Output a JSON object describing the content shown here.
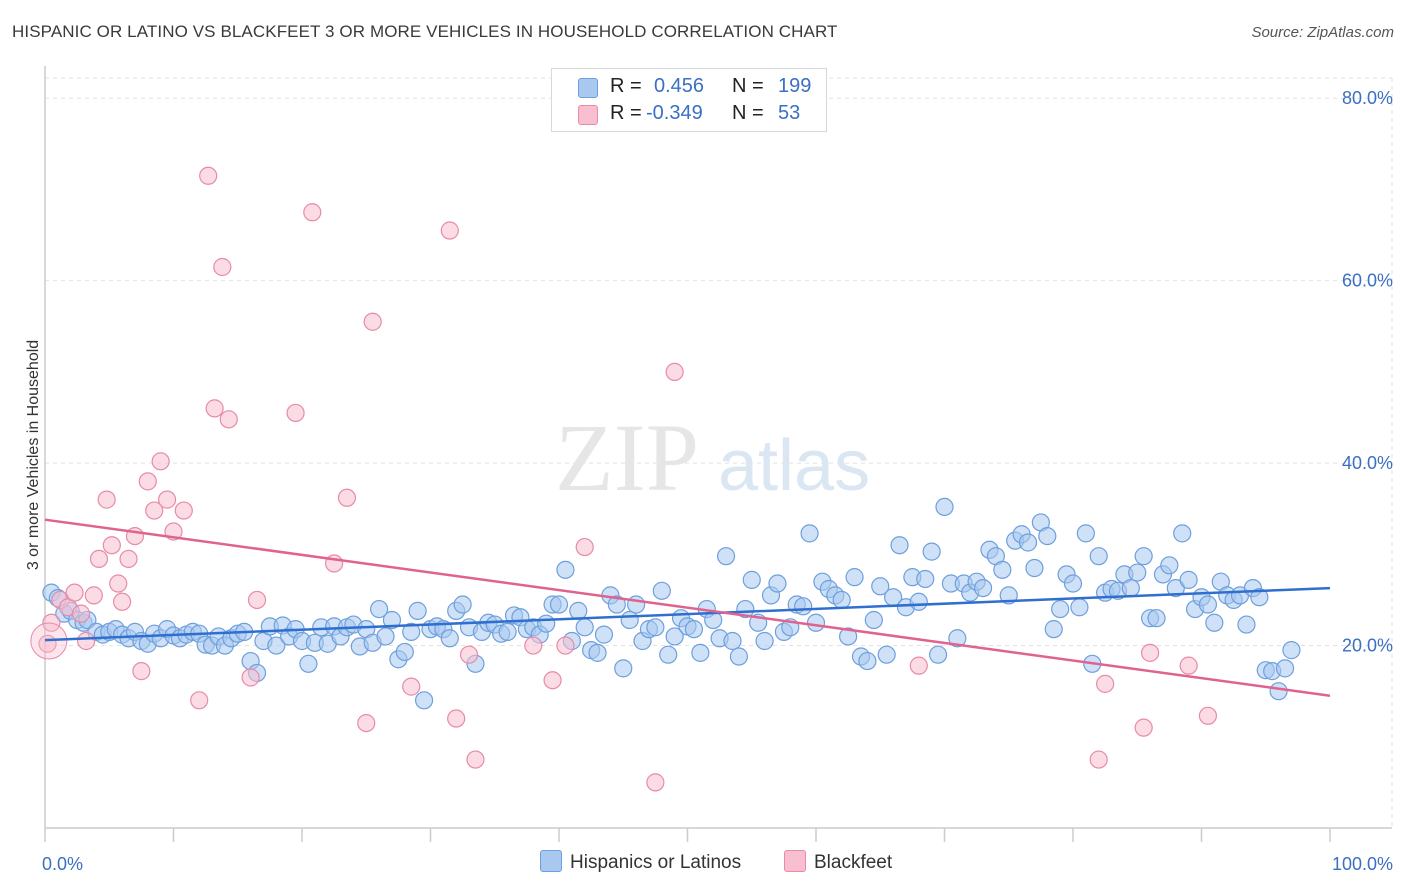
{
  "title": "HISPANIC OR LATINO VS BLACKFEET 3 OR MORE VEHICLES IN HOUSEHOLD CORRELATION CHART",
  "source": "Source: ZipAtlas.com",
  "watermark": {
    "zip": "ZIP",
    "atlas": "atlas"
  },
  "legend": {
    "rows": [
      {
        "r_label": "R =",
        "r_value": "0.456",
        "n_label": "N =",
        "n_value": "199",
        "color": "#a8c8f0",
        "border": "#6e9fdd"
      },
      {
        "r_label": "R =",
        "r_value": "-0.349",
        "n_label": "N =",
        "n_value": "53",
        "color": "#f7bfd0",
        "border": "#e88aa8"
      }
    ]
  },
  "bottom_legend": [
    {
      "label": "Hispanics or Latinos",
      "color": "#a8c8f0",
      "border": "#6e9fdd"
    },
    {
      "label": "Blackfeet",
      "color": "#f7bfd0",
      "border": "#e88aa8"
    }
  ],
  "chart_data": {
    "type": "scatter",
    "xlabel": "",
    "ylabel": "3 or more Vehicles in Household",
    "xlim": [
      0,
      100
    ],
    "ylim": [
      0,
      82
    ],
    "x_tick_labels": [
      "0.0%",
      "100.0%"
    ],
    "y_ticks": [
      20,
      40,
      60,
      80
    ],
    "y_tick_labels": [
      "20.0%",
      "40.0%",
      "60.0%",
      "80.0%"
    ],
    "grid": true,
    "series": [
      {
        "name": "Hispanics or Latinos",
        "color": "#6e9fdd",
        "fill": "#a8c8f0",
        "trend": {
          "x": [
            0,
            100
          ],
          "y": [
            20.6,
            26.3
          ]
        },
        "points": [
          [
            0.5,
            25.8
          ],
          [
            1,
            25.2
          ],
          [
            1.5,
            23.5
          ],
          [
            2,
            23.8
          ],
          [
            2.5,
            22.8
          ],
          [
            3,
            22.5
          ],
          [
            3.3,
            22.8
          ],
          [
            4,
            21.5
          ],
          [
            4.5,
            21.2
          ],
          [
            5,
            21.5
          ],
          [
            5.5,
            21.8
          ],
          [
            6,
            21.2
          ],
          [
            6.5,
            20.8
          ],
          [
            7,
            21.5
          ],
          [
            7.5,
            20.5
          ],
          [
            8,
            20.2
          ],
          [
            8.5,
            21.3
          ],
          [
            9,
            20.8
          ],
          [
            9.5,
            21.8
          ],
          [
            10,
            21.1
          ],
          [
            10.5,
            20.8
          ],
          [
            11,
            21.2
          ],
          [
            11.5,
            21.5
          ],
          [
            12,
            21.3
          ],
          [
            12.5,
            20.1
          ],
          [
            13,
            20.0
          ],
          [
            13.5,
            21.0
          ],
          [
            14,
            20.0
          ],
          [
            14.5,
            20.8
          ],
          [
            15,
            21.3
          ],
          [
            15.5,
            21.5
          ],
          [
            16,
            18.3
          ],
          [
            16.5,
            17.0
          ],
          [
            17,
            20.5
          ],
          [
            17.5,
            22.1
          ],
          [
            18,
            20.0
          ],
          [
            18.5,
            22.2
          ],
          [
            19,
            21.0
          ],
          [
            19.5,
            21.8
          ],
          [
            20,
            20.5
          ],
          [
            20.5,
            18.0
          ],
          [
            21,
            20.3
          ],
          [
            21.5,
            22.0
          ],
          [
            22,
            20.2
          ],
          [
            22.5,
            22.1
          ],
          [
            23,
            21.0
          ],
          [
            23.5,
            22.0
          ],
          [
            24,
            22.3
          ],
          [
            24.5,
            19.9
          ],
          [
            25,
            21.8
          ],
          [
            25.5,
            20.3
          ],
          [
            26,
            24.0
          ],
          [
            26.5,
            21.0
          ],
          [
            27,
            22.8
          ],
          [
            27.5,
            18.5
          ],
          [
            28,
            19.3
          ],
          [
            28.5,
            21.5
          ],
          [
            29,
            23.8
          ],
          [
            29.5,
            14.0
          ],
          [
            30,
            21.8
          ],
          [
            30.5,
            22.1
          ],
          [
            31,
            21.8
          ],
          [
            31.5,
            20.8
          ],
          [
            32,
            23.8
          ],
          [
            32.5,
            24.5
          ],
          [
            33,
            22.0
          ],
          [
            33.5,
            18.0
          ],
          [
            34,
            21.5
          ],
          [
            34.5,
            22.5
          ],
          [
            35,
            22.3
          ],
          [
            35.5,
            21.3
          ],
          [
            36,
            21.5
          ],
          [
            36.5,
            23.3
          ],
          [
            37,
            23.1
          ],
          [
            37.5,
            21.8
          ],
          [
            38,
            22.0
          ],
          [
            38.5,
            21.2
          ],
          [
            39,
            22.4
          ],
          [
            39.5,
            24.5
          ],
          [
            40,
            24.5
          ],
          [
            40.5,
            28.3
          ],
          [
            41,
            20.5
          ],
          [
            41.5,
            23.8
          ],
          [
            42,
            22.0
          ],
          [
            42.5,
            19.5
          ],
          [
            43,
            19.2
          ],
          [
            43.5,
            21.2
          ],
          [
            44,
            25.5
          ],
          [
            44.5,
            24.5
          ],
          [
            45,
            17.5
          ],
          [
            45.5,
            22.8
          ],
          [
            46,
            24.5
          ],
          [
            46.5,
            20.5
          ],
          [
            47,
            21.8
          ],
          [
            47.5,
            22.0
          ],
          [
            48,
            26.0
          ],
          [
            48.5,
            19.0
          ],
          [
            49,
            21.0
          ],
          [
            49.5,
            23.0
          ],
          [
            50,
            22.1
          ],
          [
            50.5,
            21.8
          ],
          [
            51,
            19.2
          ],
          [
            51.5,
            24.0
          ],
          [
            52,
            22.8
          ],
          [
            52.5,
            20.8
          ],
          [
            53,
            29.8
          ],
          [
            53.5,
            20.5
          ],
          [
            54,
            18.8
          ],
          [
            54.5,
            24.0
          ],
          [
            55,
            27.2
          ],
          [
            55.5,
            22.5
          ],
          [
            56,
            20.5
          ],
          [
            56.5,
            25.5
          ],
          [
            57,
            26.8
          ],
          [
            57.5,
            21.5
          ],
          [
            58,
            22.0
          ],
          [
            58.5,
            24.5
          ],
          [
            59,
            24.3
          ],
          [
            59.5,
            32.3
          ],
          [
            60,
            22.5
          ],
          [
            60.5,
            27.0
          ],
          [
            61,
            26.2
          ],
          [
            61.5,
            25.5
          ],
          [
            62,
            25.0
          ],
          [
            62.5,
            21.0
          ],
          [
            63,
            27.5
          ],
          [
            63.5,
            18.8
          ],
          [
            64,
            18.3
          ],
          [
            64.5,
            22.8
          ],
          [
            65,
            26.5
          ],
          [
            65.5,
            19.0
          ],
          [
            66,
            25.3
          ],
          [
            66.5,
            31.0
          ],
          [
            67,
            24.2
          ],
          [
            67.5,
            27.5
          ],
          [
            68,
            24.8
          ],
          [
            68.5,
            27.3
          ],
          [
            69,
            30.3
          ],
          [
            69.5,
            19.0
          ],
          [
            70,
            35.2
          ],
          [
            70.5,
            26.8
          ],
          [
            71,
            20.8
          ],
          [
            71.5,
            26.8
          ],
          [
            72,
            25.8
          ],
          [
            72.5,
            27.0
          ],
          [
            73,
            26.3
          ],
          [
            73.5,
            30.5
          ],
          [
            74,
            29.8
          ],
          [
            74.5,
            28.3
          ],
          [
            75,
            25.5
          ],
          [
            75.5,
            31.5
          ],
          [
            76,
            32.2
          ],
          [
            76.5,
            31.3
          ],
          [
            77,
            28.5
          ],
          [
            77.5,
            33.5
          ],
          [
            78,
            32.0
          ],
          [
            78.5,
            21.8
          ],
          [
            79,
            24.0
          ],
          [
            79.5,
            27.8
          ],
          [
            80,
            26.8
          ],
          [
            80.5,
            24.2
          ],
          [
            81,
            32.3
          ],
          [
            81.5,
            18.0
          ],
          [
            82,
            29.8
          ],
          [
            82.5,
            25.8
          ],
          [
            83,
            26.2
          ],
          [
            83.5,
            26.0
          ],
          [
            84,
            27.8
          ],
          [
            84.5,
            26.3
          ],
          [
            85,
            28.0
          ],
          [
            85.5,
            29.8
          ],
          [
            86,
            23.0
          ],
          [
            86.5,
            23.0
          ],
          [
            87,
            27.8
          ],
          [
            87.5,
            28.8
          ],
          [
            88,
            26.3
          ],
          [
            88.5,
            32.3
          ],
          [
            89,
            27.2
          ],
          [
            89.5,
            24.0
          ],
          [
            90,
            25.3
          ],
          [
            90.5,
            24.5
          ],
          [
            91,
            22.5
          ],
          [
            91.5,
            27.0
          ],
          [
            92,
            25.5
          ],
          [
            92.5,
            25.0
          ],
          [
            93,
            25.5
          ],
          [
            93.5,
            22.3
          ],
          [
            94,
            26.3
          ],
          [
            94.5,
            25.3
          ],
          [
            95,
            17.3
          ],
          [
            95.5,
            17.2
          ],
          [
            96,
            15.0
          ],
          [
            96.5,
            17.5
          ],
          [
            97,
            19.5
          ]
        ]
      },
      {
        "name": "Blackfeet",
        "color": "#e88aa8",
        "fill": "#f7bfd0",
        "trend": {
          "x": [
            0,
            100
          ],
          "y": [
            33.8,
            14.5
          ]
        },
        "points": [
          [
            0.2,
            20.2
          ],
          [
            0.5,
            22.5
          ],
          [
            1.2,
            25.0
          ],
          [
            1.8,
            24.2
          ],
          [
            2.3,
            25.8
          ],
          [
            2.8,
            23.5
          ],
          [
            3.2,
            20.5
          ],
          [
            3.8,
            25.5
          ],
          [
            4.2,
            29.5
          ],
          [
            4.8,
            36.0
          ],
          [
            5.2,
            31.0
          ],
          [
            5.7,
            26.8
          ],
          [
            6,
            24.8
          ],
          [
            6.5,
            29.5
          ],
          [
            7,
            32.0
          ],
          [
            7.5,
            17.2
          ],
          [
            8,
            38.0
          ],
          [
            8.5,
            34.8
          ],
          [
            9,
            40.2
          ],
          [
            9.5,
            36.0
          ],
          [
            10,
            32.5
          ],
          [
            10.8,
            34.8
          ],
          [
            12,
            14.0
          ],
          [
            12.7,
            71.5
          ],
          [
            13.2,
            46.0
          ],
          [
            13.8,
            61.5
          ],
          [
            14.3,
            44.8
          ],
          [
            16,
            16.5
          ],
          [
            16.5,
            25.0
          ],
          [
            19.5,
            45.5
          ],
          [
            20.8,
            67.5
          ],
          [
            22.5,
            29.0
          ],
          [
            23.5,
            36.2
          ],
          [
            25,
            11.5
          ],
          [
            25.5,
            55.5
          ],
          [
            28.5,
            15.5
          ],
          [
            31.5,
            65.5
          ],
          [
            32,
            12.0
          ],
          [
            33,
            19.0
          ],
          [
            33.5,
            7.5
          ],
          [
            38,
            20.0
          ],
          [
            39.5,
            16.2
          ],
          [
            40.5,
            20.0
          ],
          [
            42,
            30.8
          ],
          [
            47.5,
            5.0
          ],
          [
            49,
            50.0
          ],
          [
            68,
            17.8
          ],
          [
            82,
            7.5
          ],
          [
            82.5,
            15.8
          ],
          [
            85.5,
            11.0
          ],
          [
            86,
            19.2
          ],
          [
            89,
            17.8
          ],
          [
            90.5,
            12.3
          ]
        ]
      }
    ]
  }
}
